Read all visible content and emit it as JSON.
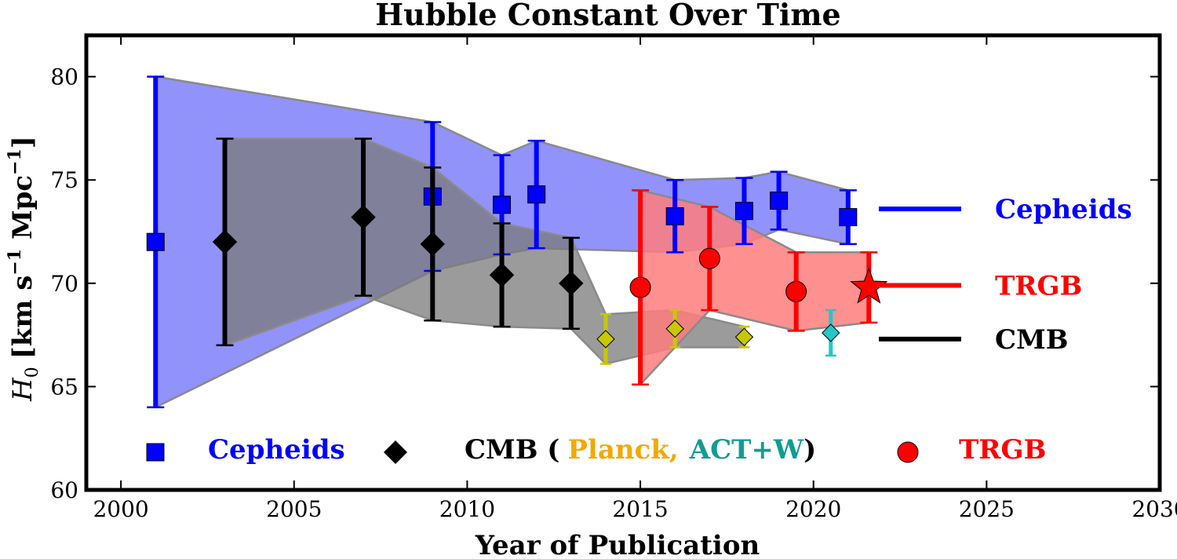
{
  "chart_data": {
    "type": "scatter",
    "title": "Hubble Constant Over Time",
    "xlabel": "Year of Publication",
    "ylabel_main": "H",
    "ylabel_sub": "0",
    "ylabel_units": "[km s",
    "ylabel_exp1": "−1",
    "ylabel_units2": " Mpc",
    "ylabel_exp2": "−1",
    "ylabel_close": "]",
    "xlim": [
      1999,
      2030
    ],
    "ylim": [
      60,
      82
    ],
    "xticks": [
      2000,
      2005,
      2010,
      2015,
      2020,
      2025,
      2030
    ],
    "yticks": [
      60,
      65,
      70,
      75,
      80
    ],
    "colors": {
      "cepheids": "#0000ff",
      "cepheids_band": "#8c8cfb",
      "cmb": "#000000",
      "cmb_band": "#7a7a7a",
      "trgb": "#ff0000",
      "trgb_band": "#ff7d7d",
      "planck": "#c8c800",
      "actw": "#20c8c8",
      "planck_text": "#f2a900",
      "actw_text": "#129c92"
    },
    "series": [
      {
        "name": "Cepheids",
        "marker": "square",
        "points": [
          {
            "x": 2001,
            "y": 72.0,
            "lo": 64.0,
            "hi": 80.0
          },
          {
            "x": 2009,
            "y": 74.2,
            "lo": 70.6,
            "hi": 77.8
          },
          {
            "x": 2011,
            "y": 73.8,
            "lo": 71.4,
            "hi": 76.2
          },
          {
            "x": 2012,
            "y": 74.3,
            "lo": 71.7,
            "hi": 76.9
          },
          {
            "x": 2016,
            "y": 73.24,
            "lo": 71.5,
            "hi": 75.0
          },
          {
            "x": 2018,
            "y": 73.5,
            "lo": 71.9,
            "hi": 75.1
          },
          {
            "x": 2019,
            "y": 74.0,
            "lo": 72.6,
            "hi": 75.4
          },
          {
            "x": 2021,
            "y": 73.2,
            "lo": 71.9,
            "hi": 74.5
          }
        ]
      },
      {
        "name": "CMB",
        "marker": "diamond",
        "points": [
          {
            "x": 2003,
            "y": 72.0,
            "lo": 67.0,
            "hi": 77.0
          },
          {
            "x": 2007,
            "y": 73.2,
            "lo": 69.4,
            "hi": 77.0
          },
          {
            "x": 2009,
            "y": 71.9,
            "lo": 68.2,
            "hi": 75.6
          },
          {
            "x": 2011,
            "y": 70.4,
            "lo": 67.9,
            "hi": 72.9
          },
          {
            "x": 2013,
            "y": 70.0,
            "lo": 67.8,
            "hi": 72.2
          }
        ]
      },
      {
        "name": "Planck",
        "marker": "diamond-small",
        "points": [
          {
            "x": 2014,
            "y": 67.3,
            "lo": 66.1,
            "hi": 68.5
          },
          {
            "x": 2016,
            "y": 67.8,
            "lo": 66.9,
            "hi": 68.7
          },
          {
            "x": 2018,
            "y": 67.4,
            "lo": 66.9,
            "hi": 67.9
          }
        ]
      },
      {
        "name": "ACT+W",
        "marker": "diamond-small",
        "points": [
          {
            "x": 2020.5,
            "y": 67.6,
            "lo": 66.5,
            "hi": 68.7
          }
        ]
      },
      {
        "name": "TRGB",
        "marker": "circle",
        "points": [
          {
            "x": 2015,
            "y": 69.8,
            "lo": 65.1,
            "hi": 74.5
          },
          {
            "x": 2017,
            "y": 71.2,
            "lo": 68.7,
            "hi": 73.7
          },
          {
            "x": 2019.5,
            "y": 69.6,
            "lo": 67.7,
            "hi": 71.5
          }
        ]
      },
      {
        "name": "TRGB-latest",
        "marker": "star",
        "points": [
          {
            "x": 2021.6,
            "y": 69.8,
            "lo": 68.1,
            "hi": 71.5
          }
        ]
      }
    ],
    "bands": [
      {
        "name": "Cepheids",
        "x": [
          2001,
          2009,
          2011,
          2012,
          2016,
          2018,
          2019,
          2021
        ],
        "upper": [
          80.0,
          77.8,
          76.2,
          76.9,
          75.0,
          75.1,
          75.4,
          74.5
        ],
        "lower": [
          64.0,
          70.6,
          71.4,
          71.7,
          71.5,
          71.9,
          72.6,
          71.9
        ]
      },
      {
        "name": "CMB",
        "x": [
          2003,
          2007,
          2009,
          2011,
          2013,
          2014,
          2016,
          2018
        ],
        "upper": [
          77.0,
          77.0,
          75.6,
          72.9,
          72.2,
          68.5,
          68.7,
          67.9
        ],
        "lower": [
          67.0,
          69.4,
          68.2,
          67.9,
          67.8,
          66.1,
          66.9,
          66.9
        ]
      },
      {
        "name": "TRGB",
        "x": [
          2015,
          2017,
          2019.5,
          2021.6
        ],
        "upper": [
          74.5,
          73.7,
          71.5,
          71.5
        ],
        "lower": [
          65.1,
          68.7,
          67.7,
          68.1
        ]
      }
    ],
    "right_legend": [
      {
        "label": "Cepheids",
        "color": "#0000ff",
        "y": 73.6
      },
      {
        "label": "TRGB",
        "color": "#ff0000",
        "y": 69.9
      },
      {
        "label": "CMB",
        "color": "#000000",
        "y": 67.3
      }
    ],
    "bottom_legend": {
      "cepheids": "Cepheids",
      "cmb": "CMB (",
      "planck": "Planck,",
      "actw": "ACT+W",
      "close": ")",
      "trgb": "TRGB"
    }
  }
}
